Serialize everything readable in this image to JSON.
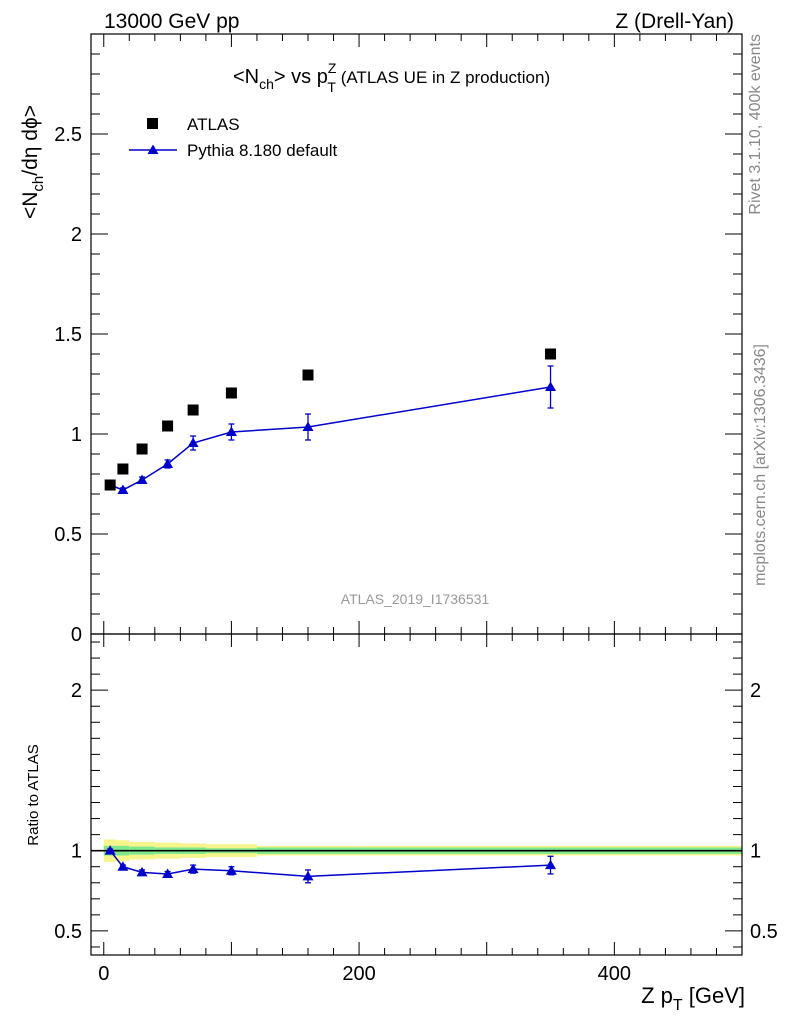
{
  "header": {
    "left": "13000 GeV pp",
    "right": "Z (Drell-Yan)"
  },
  "side_labels": {
    "rivet": "Rivet 3.1.10,  400k events",
    "mcplots": "mcplots.cern.ch [arXiv:1306.3436]"
  },
  "chart_data": [
    {
      "type": "scatter",
      "panel": "main",
      "title_parts": {
        "pre": "<N",
        "ch": "ch",
        "mid": "> vs p",
        "sup": "Z",
        "sub": "T",
        "post": " (ATLAS UE in Z production)"
      },
      "ylabel_parts": {
        "pre": "<N",
        "sub": "ch",
        "post": "/dη dϕ>"
      },
      "watermark": "ATLAS_2019_I1736531",
      "xlim": [
        -10,
        500
      ],
      "ylim": [
        0,
        3
      ],
      "y_ticks": [
        0,
        0.5,
        1,
        1.5,
        2,
        2.5
      ],
      "y_tick_labels": [
        "0",
        "0.5",
        "1",
        "1.5",
        "2",
        "2.5"
      ],
      "legend_placement": "top-left",
      "series": [
        {
          "name": "ATLAS",
          "marker": "square",
          "color": "#000000",
          "x": [
            5,
            15,
            30,
            50,
            70,
            100,
            160,
            350
          ],
          "y": [
            0.745,
            0.825,
            0.925,
            1.04,
            1.12,
            1.205,
            1.295,
            1.4
          ]
        },
        {
          "name": "Pythia 8.180 default",
          "marker": "triangle",
          "color": "#0000cc",
          "x": [
            5,
            15,
            30,
            50,
            70,
            100,
            160,
            350
          ],
          "y": [
            0.745,
            0.72,
            0.77,
            0.85,
            0.955,
            1.01,
            1.035,
            1.235
          ],
          "yerr": [
            0.01,
            0.01,
            0.015,
            0.02,
            0.035,
            0.04,
            0.065,
            0.105
          ]
        }
      ]
    },
    {
      "type": "line",
      "panel": "ratio",
      "ylabel": "Ratio to ATLAS",
      "xlabel_parts": {
        "pre": "Z p",
        "sub": "T",
        "post": " [GeV]"
      },
      "xlim": [
        -10,
        500
      ],
      "ylim": [
        0.35,
        2.35
      ],
      "x_ticks": [
        0,
        200,
        400
      ],
      "x_tick_labels": [
        "0",
        "200",
        "400"
      ],
      "y_ticks": [
        0.5,
        1,
        2
      ],
      "y_tick_labels": [
        "0.5",
        "1",
        "2"
      ],
      "reference": 1,
      "bands": {
        "stat_color": "#7fe88f",
        "total_color": "#f5f58c",
        "edges": [
          0,
          10,
          20,
          40,
          60,
          80,
          120,
          200,
          500
        ],
        "stat_halfwidth": [
          0.03,
          0.03,
          0.025,
          0.02,
          0.02,
          0.015,
          0.02,
          0.02
        ],
        "total_halfwidth": [
          0.07,
          0.065,
          0.055,
          0.05,
          0.045,
          0.04,
          0.03,
          0.03
        ]
      },
      "series": [
        {
          "name": "Pythia 8.180 default",
          "color": "#0000cc",
          "x": [
            5,
            15,
            30,
            50,
            70,
            100,
            160,
            350
          ],
          "y": [
            1.0,
            0.9,
            0.865,
            0.855,
            0.885,
            0.875,
            0.84,
            0.91
          ],
          "yerr": [
            0.01,
            0.01,
            0.015,
            0.015,
            0.025,
            0.025,
            0.04,
            0.055
          ]
        }
      ]
    }
  ]
}
